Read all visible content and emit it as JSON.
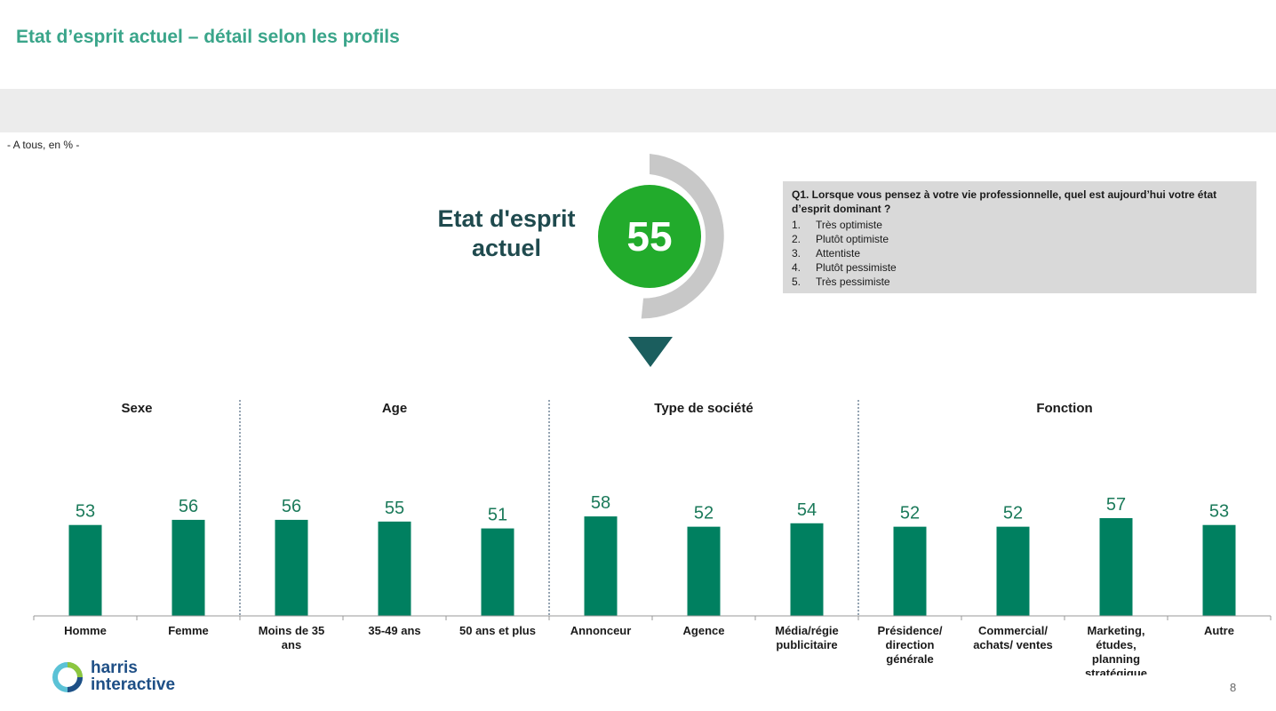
{
  "title": "Etat d’esprit actuel – détail selon les profils",
  "base_note": "- A tous, en % -",
  "gauge": {
    "label_line1": "Etat d'esprit",
    "label_line2": "actuel",
    "value": "55",
    "value_number": 55,
    "colors": {
      "circle": "#22ab2c",
      "ring": "#c8c8c8",
      "arrow": "#1b5e5e"
    }
  },
  "question": {
    "text": "Q1. Lorsque vous pensez à votre vie professionnelle, quel est aujourd’hui votre état d’esprit dominant ?",
    "options": [
      {
        "num": "1.",
        "label": "Très optimiste"
      },
      {
        "num": "2.",
        "label": "Plutôt optimiste"
      },
      {
        "num": "3.",
        "label": "Attentiste"
      },
      {
        "num": "4.",
        "label": "Plutôt pessimiste"
      },
      {
        "num": "5.",
        "label": "Très pessimiste"
      }
    ]
  },
  "chart_data": {
    "type": "bar",
    "bar_color": "#008060",
    "value_color": "#1b7a5a",
    "groups": [
      {
        "name": "Sexe",
        "categories": [
          "Homme",
          "Femme"
        ],
        "values": [
          53,
          56
        ]
      },
      {
        "name": "Age",
        "categories": [
          "Moins de 35 ans",
          "35-49 ans",
          "50 ans et plus"
        ],
        "values": [
          56,
          55,
          51
        ]
      },
      {
        "name": "Type de société",
        "categories": [
          "Annonceur",
          "Agence",
          "Média/régie publicitaire"
        ],
        "values": [
          58,
          52,
          54
        ]
      },
      {
        "name": "Fonction",
        "categories": [
          "Présidence/ direction générale",
          "Commercial/ achats/ ventes",
          "Marketing, études, planning stratégique",
          "Autre"
        ],
        "values": [
          52,
          52,
          57,
          53
        ]
      }
    ]
  },
  "logo": {
    "line1": "harris",
    "line2": "interactive"
  },
  "page_number": "8"
}
